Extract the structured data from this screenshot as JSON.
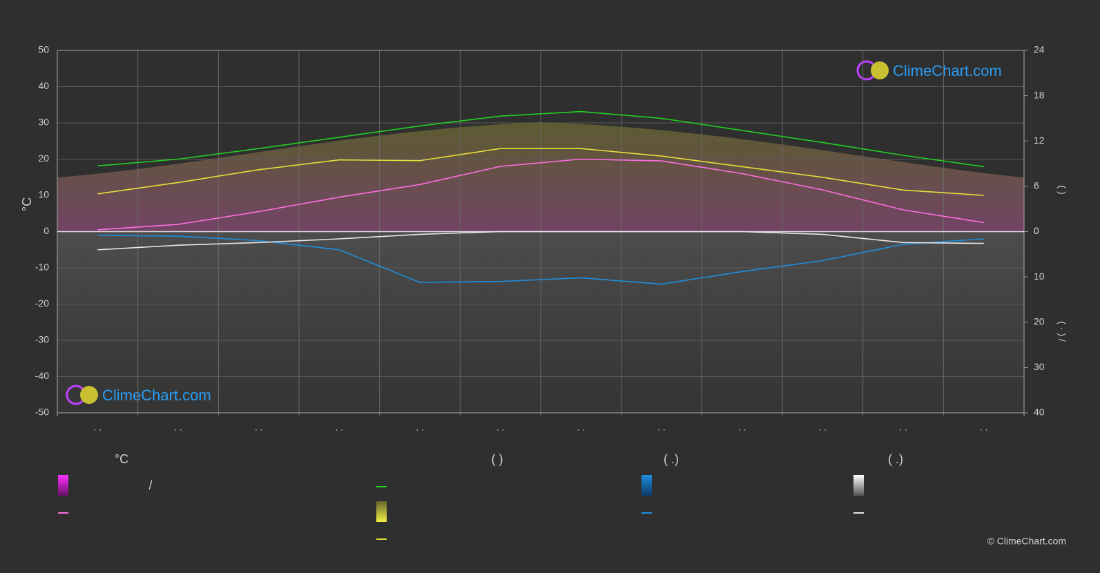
{
  "chart_data": {
    "type": "line",
    "y_label": "°C",
    "y2_label": "(        )",
    "y3_label": "( · )   /",
    "categories": [
      ". .",
      ". .",
      ". .",
      ". .",
      ". .",
      ". .",
      ". .",
      ". .",
      ". .",
      ". .",
      ". .",
      ". ."
    ],
    "ylim": [
      -50,
      50
    ],
    "yticks": [
      -50,
      -40,
      -30,
      -20,
      -10,
      0,
      10,
      20,
      30,
      40,
      50
    ],
    "y2lim": [
      0,
      24
    ],
    "y2ticks": [
      0,
      6,
      12,
      18,
      24
    ],
    "y3lim": [
      0,
      40
    ],
    "y3ticks": [
      0,
      10,
      20,
      30,
      40
    ],
    "grid": true,
    "series": [
      {
        "color": "#22d022",
        "axis": "y2",
        "values": [
          8.7,
          9.6,
          11.0,
          12.5,
          14.0,
          15.3,
          15.9,
          15.0,
          13.4,
          11.8,
          10.1,
          8.6
        ]
      },
      {
        "color": "#e6e03a",
        "axis": "y2",
        "values": [
          5.0,
          6.5,
          8.2,
          9.5,
          9.4,
          11.0,
          11.0,
          10.0,
          8.6,
          7.2,
          5.5,
          4.8
        ]
      },
      {
        "color": "#ff6ee0",
        "axis": "y",
        "values": [
          0.5,
          2,
          5.5,
          9.5,
          13,
          18,
          20,
          19.5,
          16,
          11.5,
          6,
          2.5
        ]
      },
      {
        "color": "#1e8fe0",
        "axis": "y3",
        "values": [
          0.8,
          1,
          2,
          4,
          11.2,
          11,
          10.2,
          11.6,
          8.8,
          6.4,
          2.8,
          1.6
        ]
      },
      {
        "color": "#e8e8e8",
        "axis": "y3",
        "values": [
          4,
          3,
          2.4,
          1.6,
          0.6,
          0,
          0,
          0,
          0,
          0.6,
          2.4,
          2.6
        ]
      }
    ],
    "legend_headers": [
      "°C",
      "(          )",
      "(   .)",
      "(   .)"
    ],
    "legend_slash": "/",
    "watermark": "ClimeChart.com",
    "copyright": "© ClimeChart.com"
  }
}
